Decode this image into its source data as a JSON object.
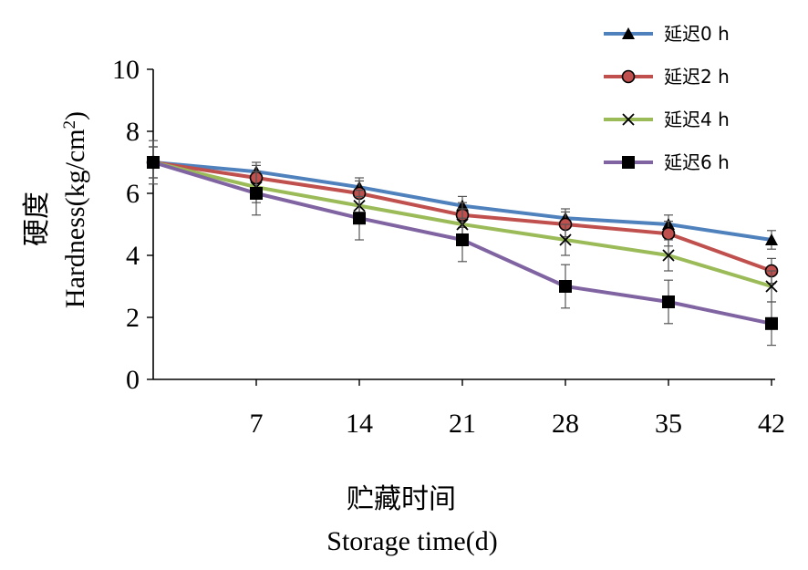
{
  "chart_data": {
    "type": "line",
    "x": [
      0,
      7,
      14,
      21,
      28,
      35,
      42
    ],
    "x_tick_labels": [
      "7",
      "14",
      "21",
      "28",
      "35",
      "42"
    ],
    "y_tick_labels": [
      "0",
      "2",
      "4",
      "6",
      "8",
      "10"
    ],
    "ylim": [
      0,
      10
    ],
    "xlim": [
      0,
      42
    ],
    "ylabel_cn": "硬度",
    "ylabel_en_main": "Hardness(kg/cm",
    "ylabel_en_sup": "2",
    "ylabel_en_close": ")",
    "xlabel_cn": "贮藏时间",
    "xlabel_en": "Storage time(d)",
    "legend_position": "top-right",
    "grid": false,
    "series": [
      {
        "name": "延迟0 h",
        "color": "#4f81bd",
        "marker": "triangle",
        "values": [
          7.0,
          6.7,
          6.2,
          5.6,
          5.2,
          5.0,
          4.5
        ],
        "errors": [
          0.5,
          0.3,
          0.3,
          0.3,
          0.3,
          0.3,
          0.3
        ]
      },
      {
        "name": "延迟2 h",
        "color": "#c0504d",
        "marker": "circle",
        "values": [
          7.0,
          6.5,
          6.0,
          5.3,
          5.0,
          4.7,
          3.5
        ],
        "errors": [
          0.5,
          0.4,
          0.4,
          0.4,
          0.4,
          0.4,
          0.4
        ]
      },
      {
        "name": "延迟4 h",
        "color": "#9bbb59",
        "marker": "cross",
        "values": [
          7.0,
          6.2,
          5.6,
          5.0,
          4.5,
          4.0,
          3.0
        ],
        "errors": [
          0.5,
          0.5,
          0.5,
          0.5,
          0.5,
          0.5,
          0.5
        ]
      },
      {
        "name": "延迟6 h",
        "color": "#8064a2",
        "marker": "square",
        "values": [
          7.0,
          6.0,
          5.2,
          4.5,
          3.0,
          2.5,
          1.8
        ],
        "errors": [
          0.7,
          0.7,
          0.7,
          0.7,
          0.7,
          0.7,
          0.7
        ]
      }
    ]
  }
}
